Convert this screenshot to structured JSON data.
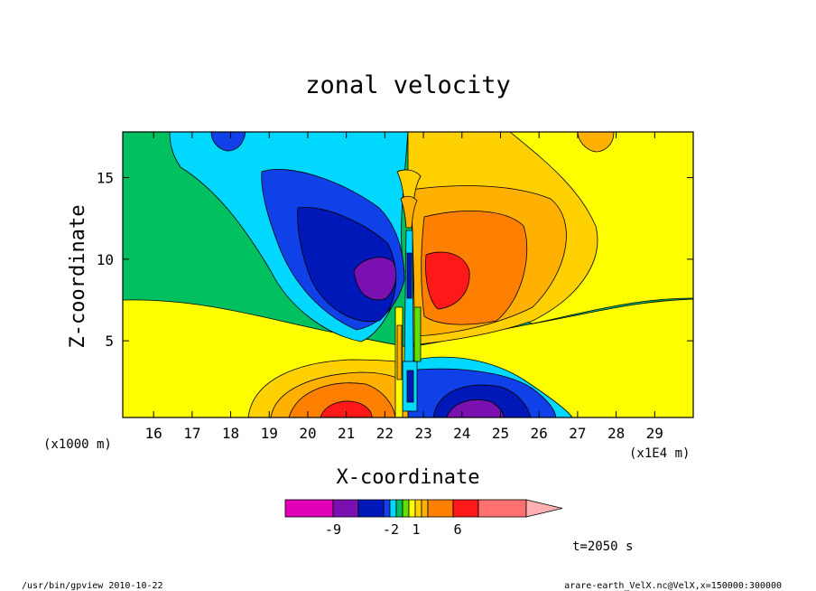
{
  "chart_data": {
    "type": "heatmap",
    "title": "zonal velocity",
    "xlabel": "X-coordinate",
    "ylabel": "Z-coordinate",
    "x_unit_left": "(x1000 m)",
    "x_unit_right": "(x1E4 m)",
    "xlim": [
      15.2,
      30.0
    ],
    "ylim": [
      0.3,
      17.8
    ],
    "x_ticks": [
      16,
      17,
      18,
      19,
      20,
      21,
      22,
      23,
      24,
      25,
      26,
      27,
      28,
      29
    ],
    "y_ticks": [
      5,
      10,
      15
    ],
    "grid": false,
    "time_label": "t=2050 s",
    "colorbar": {
      "colors": [
        "#e000b8",
        "#7a10b0",
        "#0018b8",
        "#1040e8",
        "#00d8ff",
        "#00c060",
        "#60e000",
        "#ffff00",
        "#ffd000",
        "#ffb000",
        "#ff8000",
        "#ff1818",
        "#ff7070",
        "#ffb0b0"
      ],
      "ticks": [
        "-9",
        "-2",
        "1",
        "6"
      ],
      "extend": "max"
    },
    "levels": [
      -9,
      -6,
      -3,
      -2,
      -1.5,
      -1,
      -0.5,
      0.5,
      1,
      2,
      3,
      6,
      9
    ],
    "features": [
      {
        "label": "positive core",
        "x": 23.8,
        "z": 8.5,
        "value": 7.5
      },
      {
        "label": "negative core",
        "x": 21.4,
        "z": 9.2,
        "value": -7.5
      },
      {
        "label": "positive lower",
        "x": 21.0,
        "z": 0.6,
        "value": 7.0
      },
      {
        "label": "negative lower",
        "x": 24.2,
        "z": 0.6,
        "value": -7.0
      },
      {
        "label": "negative upper",
        "x": 17.9,
        "z": 17.3,
        "value": -3.5
      },
      {
        "label": "positive upper",
        "x": 28.1,
        "z": 17.3,
        "value": 3.0
      },
      {
        "label": "central jet",
        "x": 22.55,
        "z": 9.0,
        "value": -5.0
      }
    ]
  },
  "footer": {
    "left": "/usr/bin/gpview   2010-10-22",
    "right": "arare-earth_VelX.nc@VelX,x=150000:300000"
  }
}
